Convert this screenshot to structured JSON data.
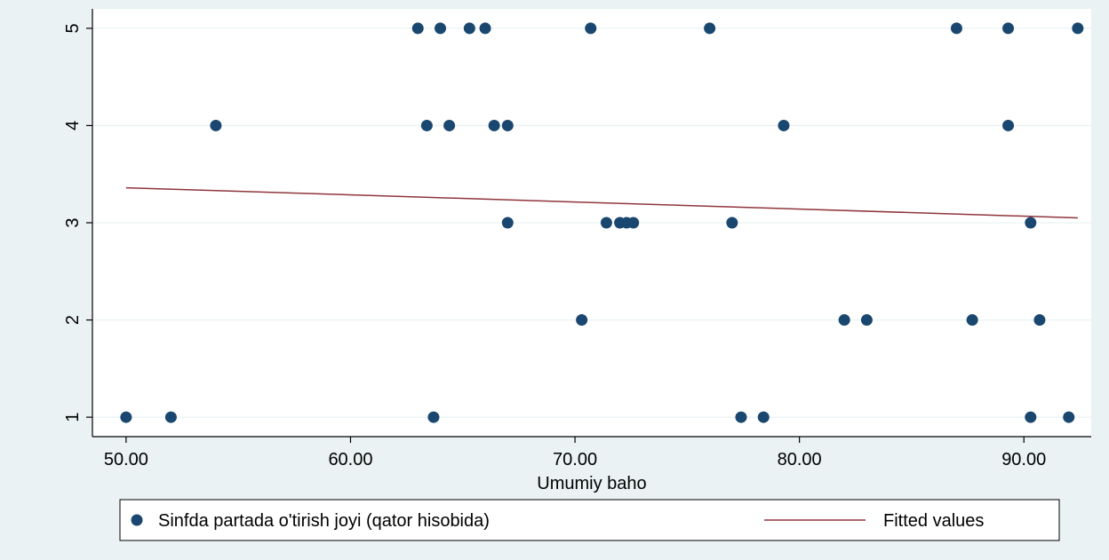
{
  "chart_data": {
    "type": "scatter",
    "title": "",
    "xlabel": "Umumiy baho",
    "ylabel": "",
    "xlim": [
      48.5,
      93.0
    ],
    "ylim": [
      0.8,
      5.2
    ],
    "x_ticks": [
      50,
      60,
      70,
      80,
      90
    ],
    "x_tick_labels": [
      "50.00",
      "60.00",
      "70.00",
      "80.00",
      "90.00"
    ],
    "y_ticks": [
      1,
      2,
      3,
      4,
      5
    ],
    "y_tick_labels": [
      "1",
      "2",
      "3",
      "4",
      "5"
    ],
    "grid": true,
    "legend_position": "bottom",
    "series": [
      {
        "name": "Sinfda partada o'tirish joyi (qator hisobida)",
        "kind": "scatter",
        "color": "#1a476f",
        "points": [
          [
            63.0,
            5
          ],
          [
            64.0,
            5
          ],
          [
            65.3,
            5
          ],
          [
            66.0,
            5
          ],
          [
            70.7,
            5
          ],
          [
            76.0,
            5
          ],
          [
            87.0,
            5
          ],
          [
            89.3,
            5
          ],
          [
            92.4,
            5
          ],
          [
            54.0,
            4
          ],
          [
            63.4,
            4
          ],
          [
            64.4,
            4
          ],
          [
            66.4,
            4
          ],
          [
            67.0,
            4
          ],
          [
            79.3,
            4
          ],
          [
            89.3,
            4
          ],
          [
            67.0,
            3
          ],
          [
            71.4,
            3
          ],
          [
            72.0,
            3
          ],
          [
            72.3,
            3
          ],
          [
            72.6,
            3
          ],
          [
            77.0,
            3
          ],
          [
            90.3,
            3
          ],
          [
            70.3,
            2
          ],
          [
            82.0,
            2
          ],
          [
            83.0,
            2
          ],
          [
            87.7,
            2
          ],
          [
            90.7,
            2
          ],
          [
            50.0,
            1
          ],
          [
            52.0,
            1
          ],
          [
            63.7,
            1
          ],
          [
            77.4,
            1
          ],
          [
            78.4,
            1
          ],
          [
            90.3,
            1
          ],
          [
            92.0,
            1
          ]
        ]
      },
      {
        "name": "Fitted values",
        "kind": "line",
        "color": "#90353b",
        "points": [
          [
            50.0,
            3.36
          ],
          [
            92.4,
            3.05
          ]
        ]
      }
    ]
  }
}
